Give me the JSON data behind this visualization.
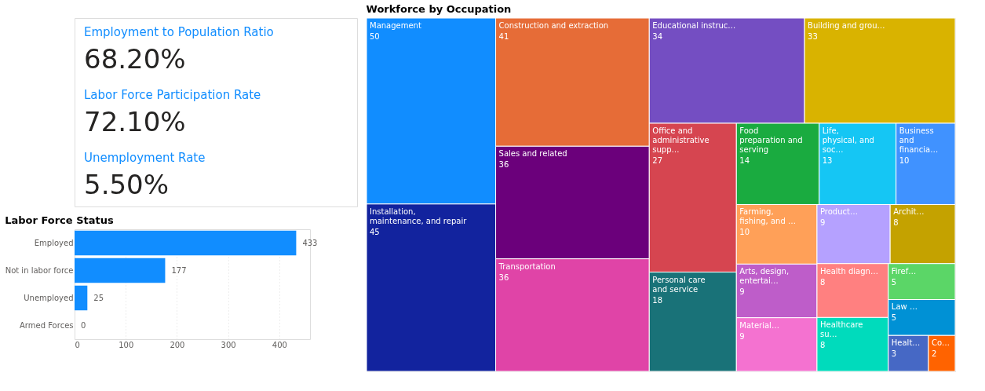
{
  "chart_data": [
    {
      "type": "other",
      "categories": [
        "Employment to Population Ratio",
        "Labor Force Participation Rate",
        "Unemployment Rate"
      ],
      "values": [
        68.2,
        72.1,
        5.5
      ],
      "value_labels": [
        "68.20%",
        "72.10%",
        "5.50%"
      ],
      "color": "#118dff"
    },
    {
      "type": "bar",
      "orientation": "horizontal",
      "title": "Labor Force Status",
      "categories": [
        "Employed",
        "Not in labor force",
        "Unemployed",
        "Armed Forces"
      ],
      "values": [
        433,
        177,
        25,
        0
      ],
      "color": "#118dff",
      "xlim": [
        0,
        460
      ],
      "xticks": [
        0,
        100,
        200,
        300,
        400
      ],
      "grid": "x",
      "data_labels": true
    },
    {
      "type": "other",
      "title": "Workforce by Occupation",
      "data_labels": true,
      "categories": [
        "Management",
        "Installation, maintenance, and repair",
        "Construction and extraction",
        "Sales and related",
        "Transportation",
        "Educational instruc…",
        "Building and grou…",
        "Office and administrative supp…",
        "Personal care and service",
        "Food preparation and serving",
        "Life, physical, and soc…",
        "Business and financia…",
        "Farming, fishing, and …",
        "Arts, design, entertai…",
        "Material…",
        "Product…",
        "Archit…",
        "Health diagn…",
        "Healthcare su…",
        "Firef…",
        "Law …",
        "Healt…",
        "Co…"
      ],
      "values": [
        50,
        45,
        41,
        36,
        36,
        34,
        33,
        27,
        18,
        14,
        13,
        10,
        10,
        9,
        9,
        9,
        8,
        8,
        8,
        5,
        5,
        3,
        2
      ],
      "colors": [
        "#118dff",
        "#12239e",
        "#e66c37",
        "#6b007b",
        "#e044a7",
        "#744ec2",
        "#d9b300",
        "#d64550",
        "#197278",
        "#1aab40",
        "#15c6f4",
        "#4092ff",
        "#ffa058",
        "#be5dc9",
        "#f472d0",
        "#b5a1ff",
        "#c4a200",
        "#ff8080",
        "#00dbbc",
        "#5bd667",
        "#0091d5",
        "#4668c5",
        "#ff6300"
      ]
    }
  ]
}
